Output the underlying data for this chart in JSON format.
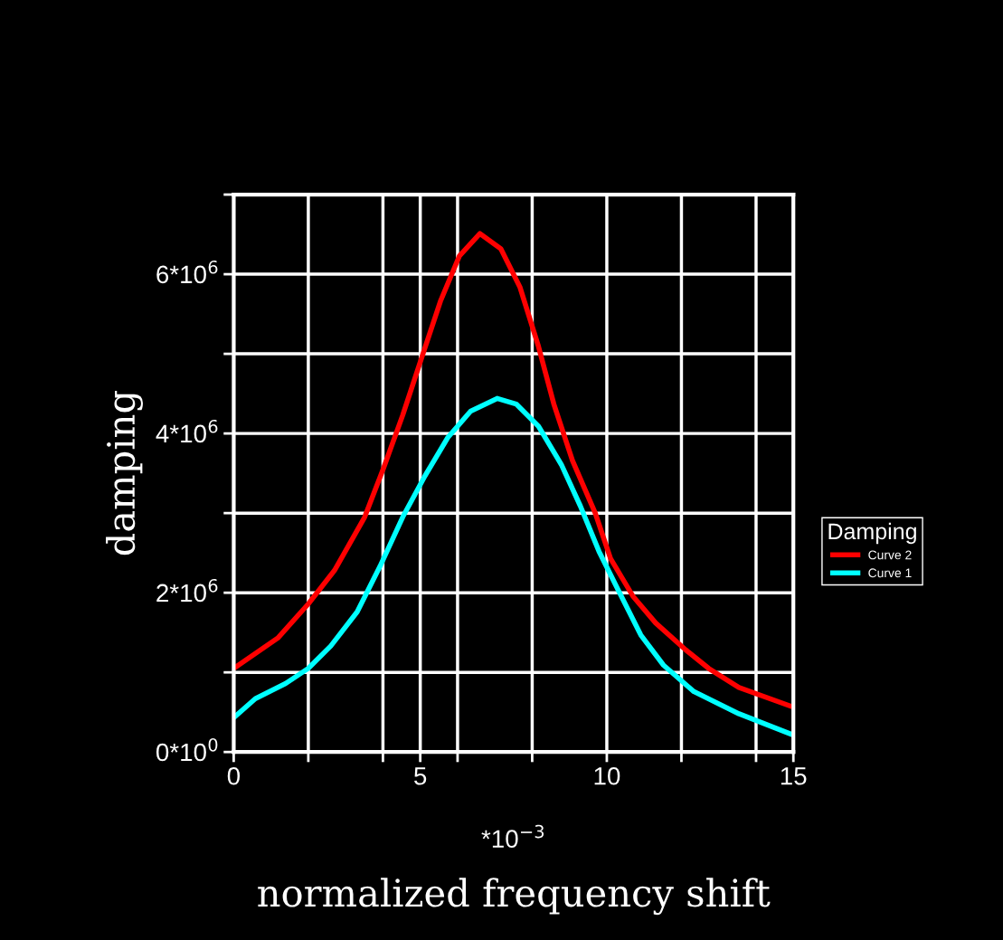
{
  "chart_data": {
    "type": "line",
    "xlabel": "normalized frequency shift",
    "ylabel": "damping",
    "legend_title": "Damping",
    "annotations": [
      "*10$^{−3}$"
    ],
    "series": [
      {
        "name": "Curve 2",
        "color": "#ff0000",
        "x": [
          0,
          1.18,
          2.0,
          2.7,
          3.51,
          4.02,
          4.53,
          5.03,
          5.54,
          6.05,
          6.6,
          7.16,
          7.67,
          8.17,
          8.58,
          9.08,
          9.69,
          10.1,
          10.71,
          11.31,
          12.12,
          12.73,
          13.54,
          14.96
        ],
        "values": [
          1050000,
          1430000,
          1860000,
          2280000,
          2950000,
          3570000,
          4230000,
          4940000,
          5660000,
          6230000,
          6510000,
          6320000,
          5840000,
          5090000,
          4370000,
          3660000,
          3000000,
          2430000,
          1950000,
          1620000,
          1280000,
          1050000,
          810000,
          570000
        ]
      },
      {
        "name": "Curve 1",
        "color": "#00ffff",
        "x": [
          0,
          0.58,
          1.39,
          2.0,
          2.6,
          3.31,
          3.92,
          4.53,
          5.13,
          5.74,
          6.35,
          7.06,
          7.57,
          8.17,
          8.78,
          9.29,
          9.79,
          10.3,
          10.91,
          11.52,
          12.33,
          13.54,
          14.96
        ],
        "values": [
          430000,
          670000,
          860000,
          1050000,
          1330000,
          1760000,
          2330000,
          2950000,
          3470000,
          3950000,
          4280000,
          4440000,
          4370000,
          4090000,
          3610000,
          3090000,
          2520000,
          2040000,
          1470000,
          1090000,
          760000,
          480000,
          220000
        ]
      }
    ],
    "xlim": [
      0,
      15
    ],
    "xticks": [
      0,
      {
        "value": 2,
        "label": null
      },
      {
        "value": 4,
        "label": null
      },
      5,
      {
        "value": 6,
        "label": null
      },
      {
        "value": 8,
        "label": null
      },
      10,
      {
        "value": 12,
        "label": null
      },
      {
        "value": 14,
        "label": null
      },
      15
    ],
    "ylim": [
      0,
      7000000
    ],
    "yticks": [
      {
        "value": 0,
        "label": "0*10$^{0}$"
      },
      {
        "value": 1000000,
        "label": null
      },
      {
        "value": 2000000,
        "label": "2*10$^{6}$"
      },
      {
        "value": 3000000,
        "label": null
      },
      {
        "value": 4000000,
        "label": "4*10$^{6}$"
      },
      {
        "value": 5000000,
        "label": null
      },
      {
        "value": 6000000,
        "label": "6*10$^{6}$"
      },
      {
        "value": 7000000,
        "label": null
      }
    ],
    "grid": true,
    "legend": "right",
    "marker": "none",
    "line_style": "solid"
  }
}
